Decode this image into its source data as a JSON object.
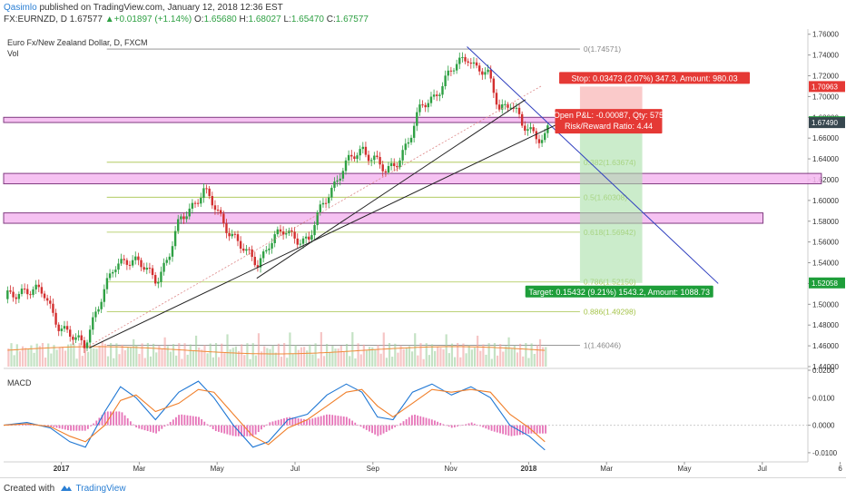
{
  "header": {
    "author": "Qasimlo",
    "published_text": "published on TradingView.com, January 12, 2018 12:36 EST",
    "symbol": "FX:EURNZD, D",
    "last": "1.67577",
    "arrow": "▲",
    "change": "+0.01897 (+1.14%)",
    "o_label": "O:",
    "o": "1.65680",
    "h_label": "H:",
    "h": "1.68027",
    "l_label": "L:",
    "l": "1.65470",
    "c_label": "C:",
    "c": "1.67577"
  },
  "legend": {
    "title": "Euro Fx/New Zealand Dollar, D, FXCM",
    "vol": "Vol",
    "macd": "MACD"
  },
  "footer": {
    "created_with": "Created with",
    "brand": "TradingView"
  },
  "colors": {
    "up": "#2ea043",
    "down": "#d32f2f",
    "pink_zone": "#f5b8f0",
    "stop_zone": "#f8b4b4",
    "target_zone": "#a8e0a8",
    "trend_blue": "#2f3fbf",
    "fib": "#a6c44b",
    "macd_line": "#1f77d4",
    "signal_line": "#f07f2a",
    "hist": "#e673b8"
  },
  "chart_data": {
    "type": "candlestick",
    "title": "Euro Fx/New Zealand Dollar, D, FXCM",
    "y_ticks": [
      "1.76000",
      "1.74000",
      "1.72000",
      "1.70000",
      "1.68000",
      "1.66000",
      "1.64000",
      "1.62000",
      "1.60000",
      "1.58000",
      "1.56000",
      "1.54000",
      "1.52000",
      "1.50000",
      "1.48000",
      "1.46000",
      "1.44000"
    ],
    "ylim": [
      1.44,
      1.765
    ],
    "x_ticks": [
      "2017",
      "Mar",
      "May",
      "Jul",
      "Sep",
      "Nov",
      "2018",
      "Mar",
      "May",
      "Jul",
      "6"
    ],
    "close_path": [
      {
        "month": 0.0,
        "price": 1.505
      },
      {
        "month": 0.5,
        "price": 1.515
      },
      {
        "month": 1.0,
        "price": 1.51
      },
      {
        "month": 1.4,
        "price": 1.48
      },
      {
        "month": 1.8,
        "price": 1.465
      },
      {
        "month": 2.05,
        "price": 1.462
      },
      {
        "month": 2.3,
        "price": 1.49
      },
      {
        "month": 2.6,
        "price": 1.515
      },
      {
        "month": 2.8,
        "price": 1.535
      },
      {
        "month": 3.1,
        "price": 1.545
      },
      {
        "month": 3.4,
        "price": 1.54
      },
      {
        "month": 3.7,
        "price": 1.53
      },
      {
        "month": 3.9,
        "price": 1.525
      },
      {
        "month": 4.2,
        "price": 1.545
      },
      {
        "month": 4.5,
        "price": 1.58
      },
      {
        "month": 4.8,
        "price": 1.595
      },
      {
        "month": 5.1,
        "price": 1.61
      },
      {
        "month": 5.35,
        "price": 1.595
      },
      {
        "month": 5.6,
        "price": 1.58
      },
      {
        "month": 5.9,
        "price": 1.565
      },
      {
        "month": 6.2,
        "price": 1.548
      },
      {
        "month": 6.5,
        "price": 1.54
      },
      {
        "month": 6.8,
        "price": 1.56
      },
      {
        "month": 7.2,
        "price": 1.57
      },
      {
        "month": 7.5,
        "price": 1.565
      },
      {
        "month": 7.8,
        "price": 1.56
      },
      {
        "month": 8.2,
        "price": 1.6
      },
      {
        "month": 8.6,
        "price": 1.625
      },
      {
        "month": 8.9,
        "price": 1.64
      },
      {
        "month": 9.2,
        "price": 1.65
      },
      {
        "month": 9.5,
        "price": 1.64
      },
      {
        "month": 9.8,
        "price": 1.625
      },
      {
        "month": 10.1,
        "price": 1.64
      },
      {
        "month": 10.4,
        "price": 1.66
      },
      {
        "month": 10.7,
        "price": 1.69
      },
      {
        "month": 11.0,
        "price": 1.7
      },
      {
        "month": 11.3,
        "price": 1.715
      },
      {
        "month": 11.6,
        "price": 1.73
      },
      {
        "month": 11.9,
        "price": 1.74
      },
      {
        "month": 12.1,
        "price": 1.728
      },
      {
        "month": 12.4,
        "price": 1.72
      },
      {
        "month": 12.7,
        "price": 1.69
      },
      {
        "month": 13.0,
        "price": 1.695
      },
      {
        "month": 13.3,
        "price": 1.67
      },
      {
        "month": 13.6,
        "price": 1.665
      },
      {
        "month": 13.85,
        "price": 1.66
      },
      {
        "month": 14.0,
        "price": 1.675
      }
    ],
    "fib_levels": [
      {
        "label": "0(1.74571)",
        "price": 1.74571
      },
      {
        "label": "0.382(1.63674)",
        "price": 1.63674
      },
      {
        "label": "0.5(1.60308)",
        "price": 1.60308
      },
      {
        "label": "0.618(1.56942)",
        "price": 1.56942
      },
      {
        "label": "0.786(1.52150)",
        "price": 1.5215
      },
      {
        "label": "0.886(1.49298)",
        "price": 1.49298
      },
      {
        "label": "1(1.46046)",
        "price": 1.46046
      }
    ],
    "zones": [
      {
        "name": "resistance-zone",
        "from": 1.675,
        "to": 1.68,
        "x_start_month": 0.0,
        "x_end_month": 14.5
      },
      {
        "name": "support-zone-1",
        "from": 1.616,
        "to": 1.626,
        "x_start_month": 0.0,
        "x_end_month": 21.0
      },
      {
        "name": "support-zone-2",
        "from": 1.578,
        "to": 1.588,
        "x_start_month": 0.0,
        "x_end_month": 19.5
      }
    ],
    "position": {
      "entry_price": 1.6749,
      "stop_price": 1.70963,
      "target_price": 1.52058,
      "start_month": 14.8,
      "end_month": 16.4,
      "stop_label": "Stop: 0.03473 (2.07%) 347.3, Amount: 980.03",
      "open_label": "Open P&L: -0.00087, Qty: 575",
      "rr_label": "Risk/Reward Ratio: 4.44",
      "target_label": "Target: 0.15432 (9.21%) 1543.2, Amount: 1088.73"
    },
    "price_tags": [
      {
        "label": "1.70963",
        "price": 1.70963,
        "style": "red"
      },
      {
        "label": "1.67577",
        "price": 1.67577,
        "style": "green"
      },
      {
        "label": "1.67490",
        "price": 1.6749,
        "style": "dark"
      },
      {
        "label": "1.52058",
        "price": 1.52058,
        "style": "green"
      }
    ],
    "trendlines": [
      {
        "name": "blue-down-trend",
        "from": {
          "month": 11.9,
          "price": 1.748
        },
        "to": {
          "month": 18.35,
          "price": 1.52
        },
        "color": "trend_blue"
      },
      {
        "name": "main-up-trend",
        "from": {
          "month": 2.2,
          "price": 1.458
        },
        "to": {
          "month": 14.2,
          "price": 1.673
        },
        "color": "black"
      },
      {
        "name": "inner-up-trend",
        "from": {
          "month": 6.5,
          "price": 1.525
        },
        "to": {
          "month": 13.4,
          "price": 1.697
        },
        "color": "black"
      },
      {
        "name": "dotted-channel",
        "from": {
          "month": 2.2,
          "price": 1.46
        },
        "to": {
          "month": 13.8,
          "price": 1.71
        },
        "color": "red-dotted"
      }
    ],
    "macd": {
      "y_ticks": [
        "0.0200",
        "0.0100",
        "0.0000",
        "-0.0100"
      ],
      "ylim": [
        -0.013,
        0.02
      ],
      "macd_line": [
        {
          "month": 0.0,
          "v": 0.0
        },
        {
          "month": 0.6,
          "v": 0.001
        },
        {
          "month": 1.2,
          "v": -0.001
        },
        {
          "month": 1.7,
          "v": -0.006
        },
        {
          "month": 2.1,
          "v": -0.008
        },
        {
          "month": 2.6,
          "v": 0.005
        },
        {
          "month": 3.0,
          "v": 0.014
        },
        {
          "month": 3.4,
          "v": 0.01
        },
        {
          "month": 3.9,
          "v": 0.002
        },
        {
          "month": 4.5,
          "v": 0.012
        },
        {
          "month": 5.0,
          "v": 0.016
        },
        {
          "month": 5.4,
          "v": 0.01
        },
        {
          "month": 5.9,
          "v": 0.0
        },
        {
          "month": 6.4,
          "v": -0.008
        },
        {
          "month": 6.8,
          "v": -0.006
        },
        {
          "month": 7.3,
          "v": 0.002
        },
        {
          "month": 7.8,
          "v": 0.004
        },
        {
          "month": 8.3,
          "v": 0.011
        },
        {
          "month": 8.8,
          "v": 0.015
        },
        {
          "month": 9.2,
          "v": 0.012
        },
        {
          "month": 9.6,
          "v": 0.003
        },
        {
          "month": 10.0,
          "v": 0.002
        },
        {
          "month": 10.5,
          "v": 0.012
        },
        {
          "month": 11.0,
          "v": 0.015
        },
        {
          "month": 11.5,
          "v": 0.011
        },
        {
          "month": 12.0,
          "v": 0.014
        },
        {
          "month": 12.5,
          "v": 0.01
        },
        {
          "month": 13.0,
          "v": 0.0
        },
        {
          "month": 13.5,
          "v": -0.004
        },
        {
          "month": 13.9,
          "v": -0.009
        }
      ],
      "signal_line": [
        {
          "month": 0.0,
          "v": 0.0
        },
        {
          "month": 0.6,
          "v": 0.0005
        },
        {
          "month": 1.2,
          "v": -0.0005
        },
        {
          "month": 1.7,
          "v": -0.004
        },
        {
          "month": 2.1,
          "v": -0.006
        },
        {
          "month": 2.6,
          "v": 0.0
        },
        {
          "month": 3.0,
          "v": 0.009
        },
        {
          "month": 3.4,
          "v": 0.011
        },
        {
          "month": 3.9,
          "v": 0.005
        },
        {
          "month": 4.5,
          "v": 0.008
        },
        {
          "month": 5.0,
          "v": 0.013
        },
        {
          "month": 5.4,
          "v": 0.012
        },
        {
          "month": 5.9,
          "v": 0.004
        },
        {
          "month": 6.4,
          "v": -0.004
        },
        {
          "month": 6.8,
          "v": -0.007
        },
        {
          "month": 7.3,
          "v": -0.001
        },
        {
          "month": 7.8,
          "v": 0.002
        },
        {
          "month": 8.3,
          "v": 0.007
        },
        {
          "month": 8.8,
          "v": 0.012
        },
        {
          "month": 9.2,
          "v": 0.013
        },
        {
          "month": 9.6,
          "v": 0.007
        },
        {
          "month": 10.0,
          "v": 0.003
        },
        {
          "month": 10.5,
          "v": 0.008
        },
        {
          "month": 11.0,
          "v": 0.013
        },
        {
          "month": 11.5,
          "v": 0.012
        },
        {
          "month": 12.0,
          "v": 0.013
        },
        {
          "month": 12.5,
          "v": 0.012
        },
        {
          "month": 13.0,
          "v": 0.004
        },
        {
          "month": 13.5,
          "v": -0.001
        },
        {
          "month": 13.9,
          "v": -0.006
        }
      ]
    }
  }
}
